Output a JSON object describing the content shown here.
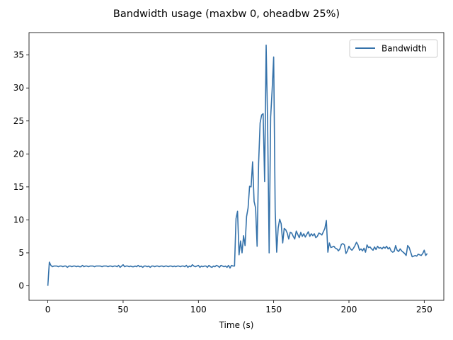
{
  "chart_data": {
    "type": "line",
    "title": "Bandwidth usage (maxbw 0, oheadbw 25%)",
    "xlabel": "Time (s)",
    "ylabel": "",
    "xlim": [
      -12.5,
      263
    ],
    "ylim": [
      -2.2,
      38.4
    ],
    "xticks": [
      0,
      50,
      100,
      150,
      200,
      250
    ],
    "yticks": [
      0,
      5,
      10,
      15,
      20,
      25,
      30,
      35
    ],
    "grid": false,
    "legend_position": "top-right",
    "series": [
      {
        "name": "Bandwidth",
        "color": "#3572aa",
        "points": [
          [
            0,
            0.0
          ],
          [
            1,
            3.6
          ],
          [
            2,
            3.1
          ],
          [
            3,
            2.9
          ],
          [
            4,
            3.0
          ],
          [
            5,
            3.0
          ],
          [
            6,
            3.0
          ],
          [
            7,
            2.9
          ],
          [
            8,
            3.0
          ],
          [
            9,
            3.0
          ],
          [
            10,
            2.9
          ],
          [
            11,
            3.0
          ],
          [
            12,
            3.0
          ],
          [
            13,
            2.8
          ],
          [
            14,
            3.0
          ],
          [
            15,
            3.0
          ],
          [
            16,
            2.9
          ],
          [
            17,
            3.0
          ],
          [
            18,
            3.0
          ],
          [
            19,
            2.9
          ],
          [
            20,
            3.0
          ],
          [
            21,
            2.9
          ],
          [
            22,
            2.9
          ],
          [
            23,
            3.1
          ],
          [
            24,
            2.9
          ],
          [
            25,
            3.0
          ],
          [
            26,
            3.0
          ],
          [
            27,
            2.9
          ],
          [
            28,
            3.0
          ],
          [
            29,
            3.0
          ],
          [
            30,
            3.0
          ],
          [
            31,
            2.9
          ],
          [
            32,
            3.0
          ],
          [
            33,
            3.0
          ],
          [
            34,
            3.0
          ],
          [
            35,
            3.0
          ],
          [
            36,
            2.9
          ],
          [
            37,
            3.0
          ],
          [
            38,
            3.0
          ],
          [
            39,
            3.0
          ],
          [
            40,
            2.9
          ],
          [
            41,
            3.0
          ],
          [
            42,
            3.0
          ],
          [
            43,
            2.9
          ],
          [
            44,
            3.0
          ],
          [
            45,
            3.0
          ],
          [
            46,
            2.9
          ],
          [
            47,
            3.1
          ],
          [
            48,
            2.8
          ],
          [
            49,
            3.0
          ],
          [
            50,
            3.2
          ],
          [
            51,
            2.9
          ],
          [
            52,
            3.0
          ],
          [
            53,
            3.0
          ],
          [
            54,
            2.9
          ],
          [
            55,
            3.0
          ],
          [
            56,
            2.9
          ],
          [
            57,
            2.9
          ],
          [
            58,
            3.0
          ],
          [
            59,
            2.9
          ],
          [
            60,
            3.1
          ],
          [
            61,
            2.9
          ],
          [
            62,
            3.0
          ],
          [
            63,
            2.8
          ],
          [
            64,
            3.0
          ],
          [
            65,
            3.0
          ],
          [
            66,
            2.9
          ],
          [
            67,
            3.0
          ],
          [
            68,
            2.8
          ],
          [
            69,
            3.0
          ],
          [
            70,
            3.0
          ],
          [
            71,
            2.9
          ],
          [
            72,
            3.0
          ],
          [
            73,
            3.0
          ],
          [
            74,
            2.9
          ],
          [
            75,
            3.0
          ],
          [
            76,
            3.0
          ],
          [
            77,
            2.9
          ],
          [
            78,
            3.0
          ],
          [
            79,
            3.0
          ],
          [
            80,
            2.9
          ],
          [
            81,
            3.0
          ],
          [
            82,
            3.0
          ],
          [
            83,
            2.9
          ],
          [
            84,
            3.0
          ],
          [
            85,
            2.9
          ],
          [
            86,
            3.0
          ],
          [
            87,
            3.0
          ],
          [
            88,
            2.9
          ],
          [
            89,
            3.0
          ],
          [
            90,
            3.0
          ],
          [
            91,
            2.9
          ],
          [
            92,
            3.1
          ],
          [
            93,
            2.8
          ],
          [
            94,
            3.0
          ],
          [
            95,
            2.9
          ],
          [
            96,
            3.2
          ],
          [
            97,
            3.0
          ],
          [
            98,
            2.9
          ],
          [
            99,
            3.0
          ],
          [
            100,
            3.1
          ],
          [
            101,
            2.8
          ],
          [
            102,
            3.0
          ],
          [
            103,
            2.9
          ],
          [
            104,
            3.0
          ],
          [
            105,
            3.0
          ],
          [
            106,
            2.8
          ],
          [
            107,
            3.1
          ],
          [
            108,
            2.9
          ],
          [
            109,
            2.8
          ],
          [
            110,
            3.0
          ],
          [
            111,
            2.9
          ],
          [
            112,
            3.1
          ],
          [
            113,
            3.0
          ],
          [
            114,
            2.8
          ],
          [
            115,
            3.1
          ],
          [
            116,
            3.0
          ],
          [
            117,
            2.9
          ],
          [
            118,
            3.0
          ],
          [
            119,
            2.8
          ],
          [
            120,
            3.1
          ],
          [
            121,
            2.7
          ],
          [
            122,
            3.1
          ],
          [
            123,
            3.0
          ],
          [
            124,
            3.0
          ],
          [
            125,
            10.2
          ],
          [
            126,
            11.3
          ],
          [
            127,
            4.7
          ],
          [
            128,
            6.8
          ],
          [
            129,
            5.0
          ],
          [
            130,
            7.6
          ],
          [
            131,
            6.1
          ],
          [
            132,
            10.5
          ],
          [
            133,
            11.8
          ],
          [
            134,
            15.1
          ],
          [
            135,
            15.0
          ],
          [
            136,
            18.8
          ],
          [
            137,
            12.8
          ],
          [
            138,
            11.8
          ],
          [
            139,
            6.0
          ],
          [
            140,
            18.6
          ],
          [
            141,
            24.7
          ],
          [
            142,
            25.9
          ],
          [
            143,
            26.1
          ],
          [
            144,
            15.8
          ],
          [
            145,
            36.5
          ],
          [
            146,
            24.2
          ],
          [
            147,
            5.0
          ],
          [
            148,
            25.6
          ],
          [
            149,
            29.8
          ],
          [
            150,
            34.7
          ],
          [
            151,
            11.5
          ],
          [
            152,
            5.1
          ],
          [
            153,
            8.8
          ],
          [
            154,
            10.1
          ],
          [
            155,
            9.4
          ],
          [
            156,
            6.5
          ],
          [
            157,
            8.7
          ],
          [
            158,
            8.5
          ],
          [
            159,
            8.0
          ],
          [
            160,
            7.1
          ],
          [
            161,
            8.1
          ],
          [
            162,
            8.0
          ],
          [
            163,
            7.5
          ],
          [
            164,
            7.1
          ],
          [
            165,
            8.3
          ],
          [
            166,
            7.8
          ],
          [
            167,
            7.3
          ],
          [
            168,
            8.1
          ],
          [
            169,
            7.5
          ],
          [
            170,
            7.9
          ],
          [
            171,
            7.4
          ],
          [
            172,
            7.8
          ],
          [
            173,
            8.2
          ],
          [
            174,
            7.5
          ],
          [
            175,
            7.9
          ],
          [
            176,
            7.6
          ],
          [
            177,
            7.9
          ],
          [
            178,
            7.3
          ],
          [
            179,
            7.5
          ],
          [
            180,
            8.0
          ],
          [
            181,
            7.9
          ],
          [
            182,
            7.7
          ],
          [
            183,
            8.2
          ],
          [
            184,
            8.7
          ],
          [
            185,
            9.9
          ],
          [
            186,
            5.1
          ],
          [
            187,
            6.5
          ],
          [
            188,
            5.8
          ],
          [
            189,
            5.9
          ],
          [
            190,
            6.0
          ],
          [
            191,
            5.7
          ],
          [
            192,
            5.6
          ],
          [
            193,
            5.3
          ],
          [
            194,
            5.6
          ],
          [
            195,
            6.3
          ],
          [
            196,
            6.4
          ],
          [
            197,
            6.2
          ],
          [
            198,
            4.9
          ],
          [
            199,
            5.3
          ],
          [
            200,
            6.0
          ],
          [
            201,
            5.6
          ],
          [
            202,
            5.4
          ],
          [
            203,
            5.7
          ],
          [
            204,
            6.1
          ],
          [
            205,
            6.6
          ],
          [
            206,
            6.2
          ],
          [
            207,
            5.4
          ],
          [
            208,
            5.6
          ],
          [
            209,
            5.3
          ],
          [
            210,
            5.7
          ],
          [
            211,
            5.1
          ],
          [
            212,
            6.2
          ],
          [
            213,
            5.8
          ],
          [
            214,
            5.9
          ],
          [
            215,
            5.6
          ],
          [
            216,
            5.4
          ],
          [
            217,
            5.9
          ],
          [
            218,
            5.5
          ],
          [
            219,
            6.0
          ],
          [
            220,
            5.7
          ],
          [
            221,
            5.8
          ],
          [
            222,
            5.6
          ],
          [
            223,
            5.9
          ],
          [
            224,
            5.7
          ],
          [
            225,
            6.0
          ],
          [
            226,
            5.6
          ],
          [
            227,
            5.8
          ],
          [
            228,
            5.3
          ],
          [
            229,
            5.1
          ],
          [
            230,
            5.2
          ],
          [
            231,
            6.1
          ],
          [
            232,
            5.4
          ],
          [
            233,
            5.2
          ],
          [
            234,
            5.6
          ],
          [
            235,
            5.3
          ],
          [
            236,
            5.1
          ],
          [
            237,
            4.9
          ],
          [
            238,
            4.6
          ],
          [
            239,
            6.1
          ],
          [
            240,
            5.8
          ],
          [
            241,
            5.1
          ],
          [
            242,
            4.4
          ],
          [
            243,
            4.5
          ],
          [
            244,
            4.6
          ],
          [
            245,
            4.5
          ],
          [
            246,
            4.8
          ],
          [
            247,
            4.7
          ],
          [
            248,
            4.6
          ],
          [
            249,
            4.9
          ],
          [
            250,
            5.4
          ],
          [
            251,
            4.6
          ],
          [
            252,
            4.9
          ]
        ]
      }
    ]
  }
}
